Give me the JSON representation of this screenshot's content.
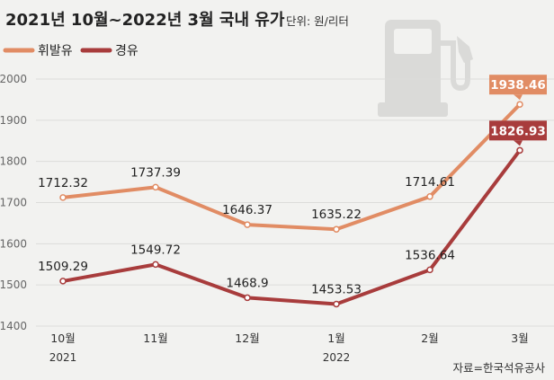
{
  "title": "2021년 10월~2022년 3월 국내 유가",
  "unit": "단위: 원/리터",
  "source": "자료=한국석유공사",
  "colors": {
    "gasoline": "#e18c64",
    "diesel": "#a83c3c",
    "gridline": "#dcdcda",
    "pump": "#dadad8"
  },
  "chart_data": {
    "type": "line",
    "categories": [
      "10월",
      "11월",
      "12월",
      "1월",
      "2월",
      "3월"
    ],
    "year_labels": [
      {
        "index": 0,
        "text": "2021"
      },
      {
        "index": 3,
        "text": "2022"
      }
    ],
    "ylim": [
      1400,
      2000
    ],
    "yticks": [
      1400,
      1500,
      1600,
      1700,
      1800,
      1900,
      2000
    ],
    "series": [
      {
        "name": "휘발유",
        "color": "#e18c64",
        "values": [
          1712.32,
          1737.39,
          1646.37,
          1635.22,
          1714.61,
          1938.46
        ],
        "labels": [
          "1712.32",
          "1737.39",
          "1646.37",
          "1635.22",
          "1714.61",
          "1938.46"
        ]
      },
      {
        "name": "경유",
        "color": "#a83c3c",
        "values": [
          1509.29,
          1549.72,
          1468.9,
          1453.53,
          1536.64,
          1826.93
        ],
        "labels": [
          "1509.29",
          "1549.72",
          "1468.9",
          "1453.53",
          "1536.64",
          "1826.93"
        ]
      }
    ],
    "grid": true,
    "legend": "top-left"
  }
}
